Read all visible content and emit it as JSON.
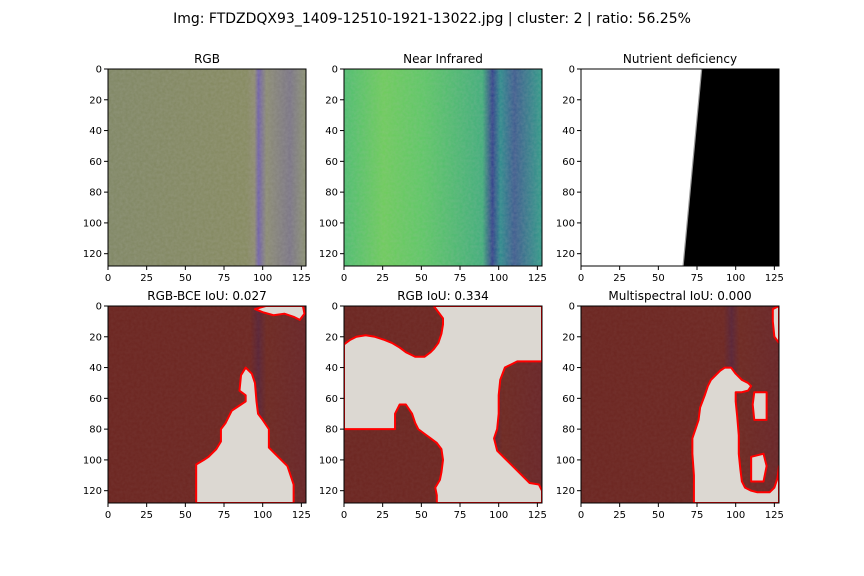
{
  "figure": {
    "suptitle": "Img: FTDZDQX93_1409-12510-1921-13022.jpg | cluster: 2 | ratio: 56.25%"
  },
  "colors": {
    "overlay_dark": "#6b2420",
    "overlay_light": "#dcd8d2",
    "contour": "#ff0000"
  },
  "chart_data": [
    {
      "type": "heatmap",
      "title": "RGB",
      "image": "rgb",
      "x_ticks": [
        0,
        25,
        50,
        75,
        100,
        125
      ],
      "y_ticks": [
        0,
        20,
        40,
        60,
        80,
        100,
        120
      ],
      "xlim": [
        0,
        128
      ],
      "ylim": [
        128,
        0
      ]
    },
    {
      "type": "heatmap",
      "title": "Near Infrared",
      "image": "nir",
      "x_ticks": [
        0,
        25,
        50,
        75,
        100,
        125
      ],
      "y_ticks": [
        0,
        20,
        40,
        60,
        80,
        100,
        120
      ],
      "xlim": [
        0,
        128
      ],
      "ylim": [
        128,
        0
      ]
    },
    {
      "type": "heatmap",
      "title": "Nutrient deficiency",
      "image": "mask",
      "x_ticks": [
        0,
        25,
        50,
        75,
        100,
        125
      ],
      "y_ticks": [
        0,
        20,
        40,
        60,
        80,
        100,
        120
      ],
      "xlim": [
        0,
        128
      ],
      "ylim": [
        128,
        0
      ],
      "boundary": [
        [
          78,
          0
        ],
        [
          66,
          128
        ]
      ]
    },
    {
      "type": "heatmap",
      "title": "RGB-BCE IoU: 0.027",
      "image": "overlay",
      "x_ticks": [
        0,
        25,
        50,
        75,
        100,
        125
      ],
      "y_ticks": [
        0,
        20,
        40,
        60,
        80,
        100,
        120
      ],
      "xlim": [
        0,
        128
      ],
      "ylim": [
        128,
        0
      ],
      "regions": [
        [
          [
            57,
            128
          ],
          [
            57,
            103
          ],
          [
            62,
            100
          ],
          [
            65,
            98
          ],
          [
            70,
            93
          ],
          [
            73,
            88
          ],
          [
            73,
            80
          ],
          [
            76,
            76
          ],
          [
            80,
            68
          ],
          [
            86,
            64
          ],
          [
            89,
            62
          ],
          [
            89,
            58
          ],
          [
            85,
            55
          ],
          [
            86,
            45
          ],
          [
            89,
            40
          ],
          [
            93,
            44
          ],
          [
            95,
            50
          ],
          [
            96,
            62
          ],
          [
            97,
            70
          ],
          [
            100,
            74
          ],
          [
            104,
            80
          ],
          [
            104,
            86
          ],
          [
            104,
            92
          ],
          [
            108,
            96
          ],
          [
            112,
            100
          ],
          [
            116,
            104
          ],
          [
            118,
            110
          ],
          [
            120,
            116
          ],
          [
            120,
            128
          ]
        ],
        [
          [
            95,
            2
          ],
          [
            102,
            0
          ],
          [
            126,
            0
          ],
          [
            127,
            5
          ],
          [
            124,
            9
          ],
          [
            120,
            7
          ],
          [
            114,
            5
          ],
          [
            107,
            6
          ],
          [
            100,
            4
          ]
        ]
      ]
    },
    {
      "type": "heatmap",
      "title": "RGB IoU: 0.334",
      "image": "overlay",
      "x_ticks": [
        0,
        25,
        50,
        75,
        100,
        125
      ],
      "y_ticks": [
        0,
        20,
        40,
        60,
        80,
        100,
        120
      ],
      "xlim": [
        0,
        128
      ],
      "ylim": [
        128,
        0
      ],
      "regions": [
        [
          [
            0,
            25
          ],
          [
            4,
            22
          ],
          [
            8,
            20
          ],
          [
            14,
            19
          ],
          [
            20,
            20
          ],
          [
            26,
            22
          ],
          [
            31,
            24
          ],
          [
            36,
            27
          ],
          [
            40,
            30
          ],
          [
            46,
            33
          ],
          [
            52,
            33
          ],
          [
            56,
            30
          ],
          [
            58,
            28
          ],
          [
            61,
            24
          ],
          [
            63,
            18
          ],
          [
            64,
            12
          ],
          [
            64,
            8
          ],
          [
            61,
            4
          ],
          [
            58,
            0
          ],
          [
            128,
            0
          ],
          [
            128,
            36
          ],
          [
            120,
            36
          ],
          [
            112,
            36
          ],
          [
            108,
            38
          ],
          [
            104,
            40
          ],
          [
            101,
            48
          ],
          [
            100,
            58
          ],
          [
            100,
            70
          ],
          [
            99,
            80
          ],
          [
            97,
            86
          ],
          [
            99,
            94
          ],
          [
            104,
            99
          ],
          [
            109,
            104
          ],
          [
            115,
            110
          ],
          [
            120,
            115
          ],
          [
            126,
            116
          ],
          [
            128,
            120
          ],
          [
            128,
            128
          ],
          [
            60,
            128
          ],
          [
            60,
            123
          ],
          [
            59,
            118
          ],
          [
            62,
            113
          ],
          [
            63,
            108
          ],
          [
            64,
            100
          ],
          [
            63,
            93
          ],
          [
            60,
            89
          ],
          [
            56,
            86
          ],
          [
            52,
            83
          ],
          [
            48,
            80
          ],
          [
            46,
            76
          ],
          [
            44,
            70
          ],
          [
            40,
            64
          ],
          [
            36,
            64
          ],
          [
            33,
            70
          ],
          [
            33,
            76
          ],
          [
            33,
            80
          ],
          [
            26,
            80
          ],
          [
            16,
            80
          ],
          [
            8,
            80
          ],
          [
            0,
            80
          ]
        ]
      ]
    },
    {
      "type": "heatmap",
      "title": "Multispectral IoU: 0.000",
      "image": "overlay",
      "x_ticks": [
        0,
        25,
        50,
        75,
        100,
        125
      ],
      "y_ticks": [
        0,
        20,
        40,
        60,
        80,
        100,
        120
      ],
      "xlim": [
        0,
        128
      ],
      "ylim": [
        128,
        0
      ],
      "regions": [
        [
          [
            73,
            128
          ],
          [
            73,
            110
          ],
          [
            72,
            96
          ],
          [
            72,
            86
          ],
          [
            74,
            80
          ],
          [
            76,
            74
          ],
          [
            77,
            66
          ],
          [
            80,
            58
          ],
          [
            82,
            52
          ],
          [
            84,
            48
          ],
          [
            87,
            45
          ],
          [
            90,
            42
          ],
          [
            93,
            40
          ],
          [
            97,
            40
          ],
          [
            100,
            44
          ],
          [
            104,
            48
          ],
          [
            108,
            50
          ],
          [
            110,
            52
          ],
          [
            108,
            55
          ],
          [
            104,
            56
          ],
          [
            100,
            56
          ],
          [
            100,
            62
          ],
          [
            101,
            72
          ],
          [
            102,
            84
          ],
          [
            102,
            96
          ],
          [
            103,
            106
          ],
          [
            104,
            114
          ],
          [
            106,
            118
          ],
          [
            110,
            120
          ],
          [
            114,
            121
          ],
          [
            118,
            121
          ],
          [
            122,
            121
          ],
          [
            125,
            118
          ],
          [
            127,
            112
          ],
          [
            128,
            104
          ],
          [
            128,
            128
          ]
        ],
        [
          [
            124,
            2
          ],
          [
            128,
            0
          ],
          [
            128,
            24
          ],
          [
            125,
            20
          ],
          [
            124,
            10
          ]
        ],
        [
          [
            112,
            56
          ],
          [
            120,
            56
          ],
          [
            120,
            74
          ],
          [
            112,
            74
          ],
          [
            111,
            64
          ]
        ],
        [
          [
            110,
            98
          ],
          [
            118,
            96
          ],
          [
            120,
            104
          ],
          [
            118,
            114
          ],
          [
            110,
            114
          ]
        ]
      ]
    }
  ]
}
